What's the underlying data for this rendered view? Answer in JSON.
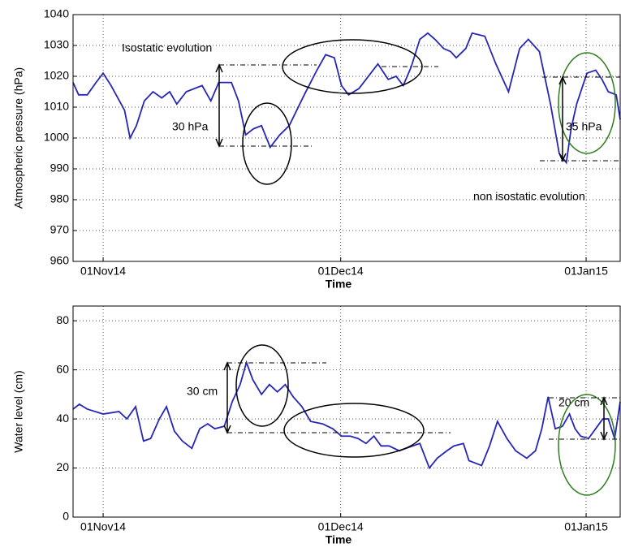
{
  "chart_data": [
    {
      "type": "line",
      "xlabel": "Time",
      "ylabel": "Atmospheric pressure (hPa)",
      "x": [
        -3.8,
        -3.1,
        -2,
        -0.9,
        0,
        1,
        2.7,
        3.4,
        4.2,
        5.2,
        6.3,
        7.4,
        8.4,
        9.3,
        10.5,
        12.5,
        13.6,
        14.6,
        16.2,
        17.1,
        18,
        19,
        20,
        21.1,
        22.3,
        23.5,
        25.4,
        27,
        28.1,
        29.2,
        30.1,
        31,
        32.3,
        33.8,
        34.7,
        36,
        37,
        37.9,
        38.9,
        40,
        41,
        41.9,
        43,
        43.9,
        44.6,
        45.8,
        46.6,
        48.2,
        49.6,
        51.2,
        52.6,
        53.7,
        55.1,
        56.5,
        57.6,
        58.5,
        59.1,
        59.8,
        61.1,
        62.2,
        63,
        63.8,
        64.8,
        65.3
      ],
      "series": [
        {
          "color": "#2626b5",
          "values": [
            1018,
            1014,
            1014,
            1018,
            1021,
            1017,
            1009,
            1000,
            1004,
            1012,
            1015,
            1013,
            1015,
            1011,
            1015,
            1017,
            1012,
            1018,
            1018,
            1012,
            1001,
            1003,
            1004,
            997,
            1001,
            1004,
            1014,
            1022,
            1027,
            1026,
            1017,
            1014,
            1016,
            1021,
            1024,
            1019,
            1020,
            1017,
            1023,
            1032,
            1034,
            1032,
            1029,
            1028,
            1026,
            1029,
            1034,
            1033,
            1024,
            1015,
            1029,
            1032,
            1028,
            1011,
            995,
            992,
            1003,
            1011,
            1021,
            1022,
            1019,
            1015,
            1014,
            1006
          ]
        }
      ],
      "xlim": [
        -3.8,
        65.3
      ],
      "xticks": [
        {
          "value": 0,
          "label": "01Nov14"
        },
        {
          "value": 30,
          "label": "01Dec14"
        },
        {
          "value": 61,
          "label": "01Jan15"
        }
      ],
      "ylim": [
        960,
        1040
      ],
      "yticks": [
        960,
        970,
        980,
        990,
        1000,
        1010,
        1020,
        1030,
        1040
      ],
      "grid": true,
      "annotations": [
        {
          "text": "Isostatic evolution",
          "color": "#000000"
        },
        {
          "text": "30 hPa",
          "color": "#000000"
        },
        {
          "text": "35 hPa",
          "color": "#000000"
        },
        {
          "text": "non isostatic evolution",
          "color": "#2e7d1e"
        }
      ]
    },
    {
      "type": "line",
      "xlabel": "Time",
      "ylabel": "Water level (cm)",
      "x": [
        -3.8,
        -3,
        -2,
        0,
        2,
        3,
        4.1,
        5.1,
        6,
        7.1,
        8,
        9,
        10,
        11.2,
        12.2,
        13.2,
        14.1,
        15.3,
        16.3,
        17.3,
        18.1,
        18.9,
        20,
        21,
        22,
        23,
        24,
        25.1,
        26.2,
        27.7,
        29,
        30.1,
        31.2,
        32.2,
        33.2,
        34.2,
        35.1,
        36.1,
        37.4,
        38.2,
        40,
        41.2,
        42.2,
        43.4,
        44.3,
        45.5,
        46.2,
        47.8,
        48.8,
        49.8,
        51,
        52.1,
        53.5,
        54.6,
        55.4,
        56.2,
        57.1,
        58,
        58.9,
        59.6,
        60.3,
        61.3,
        62.2,
        63.1,
        63.8,
        64.6,
        65.3
      ],
      "series": [
        {
          "color": "#2626b5",
          "values": [
            44,
            46,
            44,
            42,
            43,
            40,
            45,
            31,
            32,
            40,
            45,
            35,
            31,
            28,
            36,
            38,
            36,
            37,
            47,
            54,
            63,
            56,
            50,
            54,
            51,
            54,
            49,
            45,
            39,
            38,
            36,
            33,
            33,
            32,
            30,
            33,
            29,
            29,
            27,
            28,
            30,
            20,
            24,
            27,
            29,
            30,
            23,
            21,
            29,
            39,
            32,
            27,
            24,
            27,
            36,
            49,
            36,
            37,
            42,
            36,
            33,
            32,
            36,
            40,
            40,
            32,
            47
          ]
        }
      ],
      "xlim": [
        -3.8,
        65.3
      ],
      "xticks": [
        {
          "value": 0,
          "label": "01Nov14"
        },
        {
          "value": 30,
          "label": "01Dec14"
        },
        {
          "value": 61,
          "label": "01Jan15"
        }
      ],
      "ylim": [
        0,
        86
      ],
      "yticks": [
        0,
        20,
        40,
        60,
        80
      ],
      "grid": true,
      "annotations": [
        {
          "text": "30 cm",
          "color": "#000000"
        },
        {
          "text": "20 cm",
          "color": "#000000"
        }
      ]
    }
  ]
}
